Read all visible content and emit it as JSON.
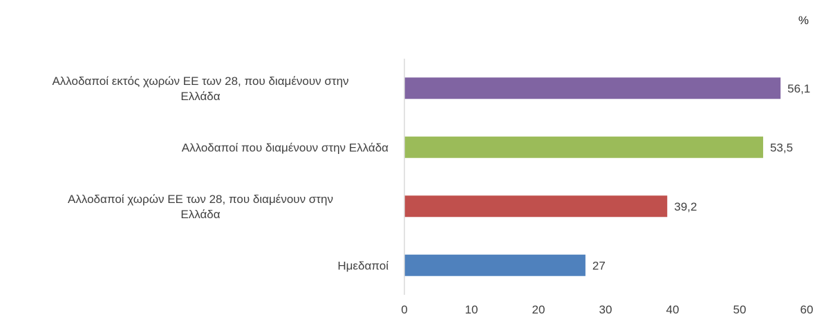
{
  "chart_data": {
    "type": "bar",
    "orientation": "horizontal",
    "unit": "%",
    "categories": [
      "Ημεδαποί",
      "Αλλοδαποί χωρών ΕΕ των 28, που διαμένουν στην Ελλάδα",
      "Αλλοδαποί που διαμένουν στην Ελλάδα",
      "Αλλοδαποί εκτός χωρών ΕΕ των 28, που διαμένουν στην Ελλάδα"
    ],
    "category_label_lines": [
      [
        "Ημεδαποί"
      ],
      [
        "Αλλοδαποί χωρών ΕΕ των 28, που διαμένουν στην",
        "Ελλάδα"
      ],
      [
        "Αλλοδαποί που διαμένουν στην Ελλάδα"
      ],
      [
        "Αλλοδαποί εκτός χωρών ΕΕ των 28, που διαμένουν στην",
        "Ελλάδα"
      ]
    ],
    "values": [
      27,
      39.2,
      53.5,
      56.1
    ],
    "data_labels": [
      "27",
      "39,2",
      "53,5",
      "56,1"
    ],
    "colors": [
      "#4F81BD",
      "#C0504D",
      "#9BBB59",
      "#8064A2"
    ],
    "xlim": [
      0,
      60
    ],
    "xticks": [
      0,
      10,
      20,
      30,
      40,
      50,
      60
    ],
    "grid": false,
    "legend": "none"
  }
}
